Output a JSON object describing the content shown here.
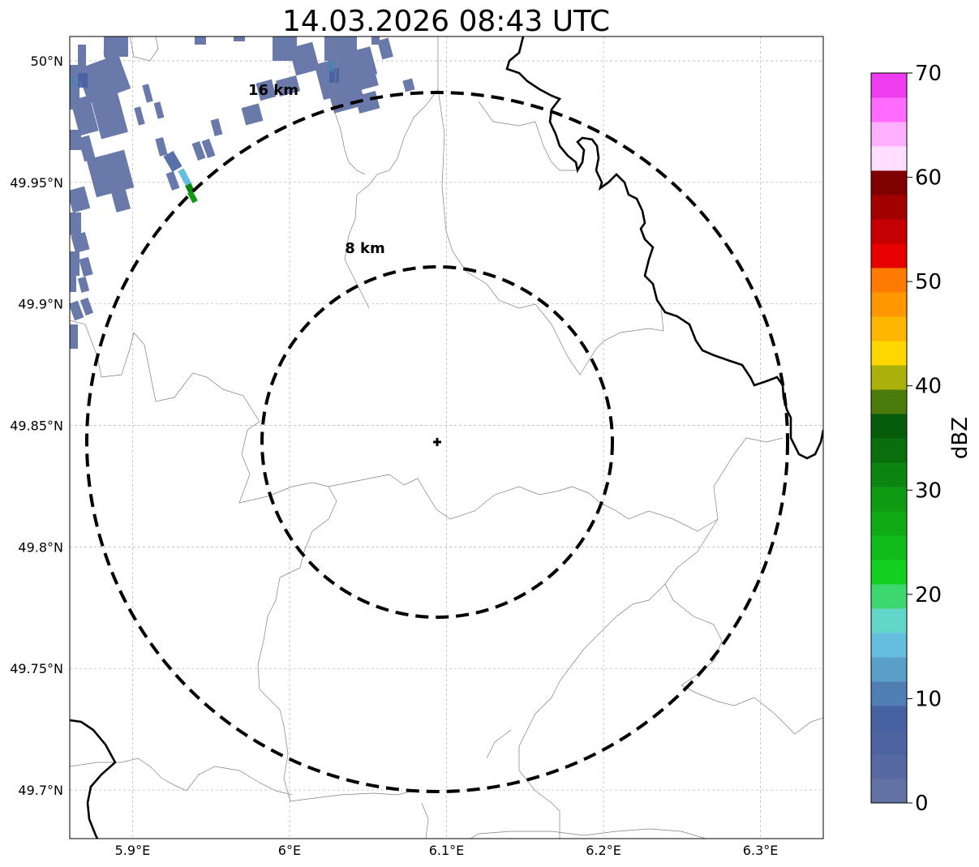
{
  "title": "14.03.2026 08:43 UTC",
  "axes": {
    "x_ticks": [
      "5.9°E",
      "6°E",
      "6.1°E",
      "6.2°E",
      "6.3°E"
    ],
    "y_ticks": [
      "50°N",
      "49.95°N",
      "49.9°N",
      "49.85°N",
      "49.8°N",
      "49.75°N",
      "49.7°N"
    ],
    "x_tick_values": [
      5.9,
      6.0,
      6.1,
      6.2,
      6.3
    ],
    "y_tick_values": [
      50.0,
      49.95,
      49.9,
      49.85,
      49.8,
      49.75,
      49.7
    ],
    "lon_range": [
      5.86,
      6.34
    ],
    "lat_range": [
      49.68,
      50.01
    ],
    "gridlines": true
  },
  "radar": {
    "center_lon": 6.096,
    "center_lat": 49.843,
    "rings": [
      {
        "radius_km": 8,
        "label": "8 km"
      },
      {
        "radius_km": 16,
        "label": "16 km"
      }
    ]
  },
  "colorbar": {
    "label": "dBZ",
    "ticks": [
      "0",
      "10",
      "20",
      "30",
      "40",
      "50",
      "60",
      "70"
    ],
    "min": 0,
    "max": 70,
    "step": 2.5,
    "colors": [
      "#6272a5",
      "#5669a3",
      "#4e64a0",
      "#4762a2",
      "#4f7fb3",
      "#5a9fc8",
      "#66bedf",
      "#62d7c9",
      "#3ed870",
      "#13cf1f",
      "#10bc1a",
      "#0faa14",
      "#0e9b12",
      "#0c8510",
      "#096f0d",
      "#065c0b",
      "#4a7a0a",
      "#a9b10a",
      "#ffd700",
      "#ffb600",
      "#ff9800",
      "#ff7a00",
      "#e60000",
      "#c50000",
      "#a30000",
      "#800000",
      "#ffdeff",
      "#ffb1ff",
      "#ff6bff",
      "#f03cf0"
    ]
  },
  "echoes_legend": {
    "dominant": "0-5 dBZ",
    "max_feature": "30-35 dBZ"
  }
}
